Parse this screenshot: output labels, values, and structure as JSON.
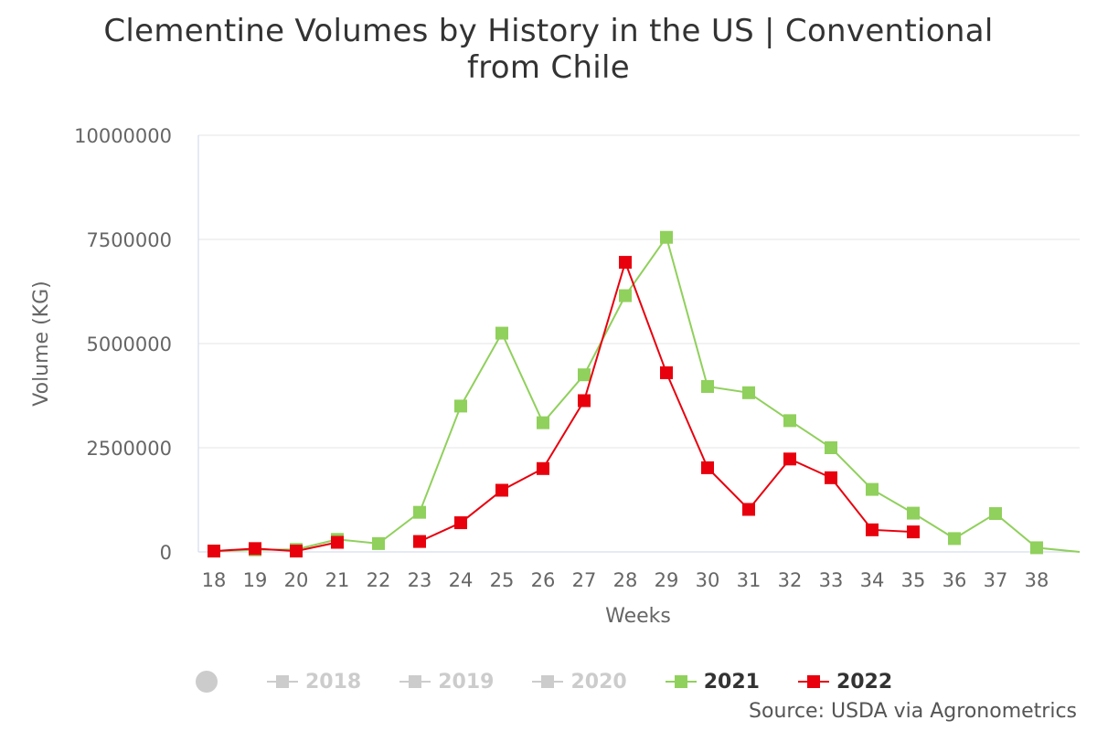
{
  "title_lines": [
    "Clementine Volumes by History in the US | Conventional",
    "from Chile"
  ],
  "source": "Source: USDA via Agronometrics",
  "legend": {
    "items": [
      {
        "label": "2018",
        "color": "#cccccc",
        "state": "hidden"
      },
      {
        "label": "2019",
        "color": "#cccccc",
        "state": "hidden"
      },
      {
        "label": "2020",
        "color": "#cccccc",
        "state": "hidden"
      },
      {
        "label": "2021",
        "color": "#90d05c",
        "state": "visible"
      },
      {
        "label": "2022",
        "color": "#e8000d",
        "state": "visible"
      }
    ]
  },
  "chart_data": {
    "type": "line",
    "title": "Clementine Volumes by History in the US | Conventional from Chile",
    "xlabel": "Weeks",
    "ylabel": "Volume (KG)",
    "categories": [
      "18",
      "19",
      "20",
      "21",
      "22",
      "23",
      "24",
      "25",
      "26",
      "27",
      "28",
      "29",
      "30",
      "31",
      "32",
      "33",
      "34",
      "35",
      "36",
      "37",
      "38"
    ],
    "ylim": [
      0,
      10000000
    ],
    "yticks": [
      "0",
      "2500000",
      "5000000",
      "7500000",
      "10000000"
    ],
    "grid": true,
    "legend_position": "bottom",
    "series": [
      {
        "name": "2021",
        "color": "#90d05c",
        "values": [
          20000,
          50000,
          60000,
          300000,
          200000,
          950000,
          3500000,
          5250000,
          3100000,
          4250000,
          6150000,
          7550000,
          3970000,
          3820000,
          3150000,
          2500000,
          1500000,
          930000,
          320000,
          920000,
          100000
        ],
        "tail_value": 0
      },
      {
        "name": "2022",
        "color": "#e8000d",
        "values": [
          20000,
          80000,
          20000,
          230000,
          null,
          250000,
          700000,
          1480000,
          2000000,
          3630000,
          6950000,
          4300000,
          2020000,
          1020000,
          2230000,
          1780000,
          530000,
          480000,
          null,
          null,
          null
        ]
      }
    ]
  }
}
